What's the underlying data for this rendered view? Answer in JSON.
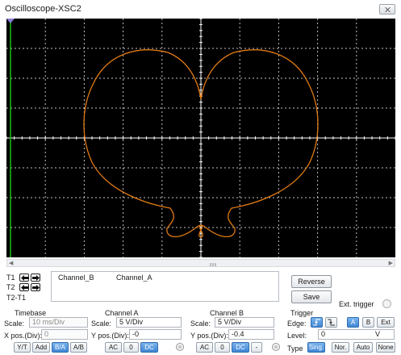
{
  "window": {
    "title": "Oscilloscope-XSC2"
  },
  "screen": {
    "trace_color": "#e07a12",
    "grid_color": "#ffffff",
    "background": "#000000"
  },
  "cursors": {
    "t1": "T1",
    "t2": "T2",
    "t2_t1": "T2-T1"
  },
  "readout": {
    "channel_b": "Channel_B",
    "channel_a": "Channel_A"
  },
  "actions": {
    "reverse": "Reverse",
    "save": "Save",
    "ext_trigger": "Ext. trigger"
  },
  "scrollbar": {
    "thumb_label": "III"
  },
  "timebase": {
    "heading": "Timebase",
    "scale_label": "Scale:",
    "scale_value": "10 ms/Div",
    "xpos_label": "X pos.(Div):",
    "xpos_value": "0",
    "modes": [
      "Y/T",
      "Add",
      "B/A",
      "A/B"
    ],
    "active_mode": "B/A"
  },
  "channel_a": {
    "heading": "Channel A",
    "scale_label": "Scale:",
    "scale_value": "5  V/Div",
    "ypos_label": "Y pos.(Div):",
    "ypos_value": "-0",
    "coupling": [
      "AC",
      "0",
      "DC"
    ],
    "active_coupling": "DC"
  },
  "channel_b": {
    "heading": "Channel B",
    "scale_label": "Scale:",
    "scale_value": "5  V/Div",
    "ypos_label": "Y pos.(Div):",
    "ypos_value": "-0.4",
    "coupling": [
      "AC",
      "0",
      "DC",
      "-"
    ],
    "active_coupling": "DC"
  },
  "trigger": {
    "heading": "Trigger",
    "edge_label": "Edge:",
    "edge_buttons": [
      "A",
      "B",
      "Ext"
    ],
    "active_edge_source": "A",
    "level_label": "Level:",
    "level_value": "0",
    "level_unit": "V",
    "type_label": "Type",
    "type_buttons": [
      "Sing.",
      "Nor.",
      "Auto",
      "None"
    ],
    "active_type": "Sing."
  }
}
